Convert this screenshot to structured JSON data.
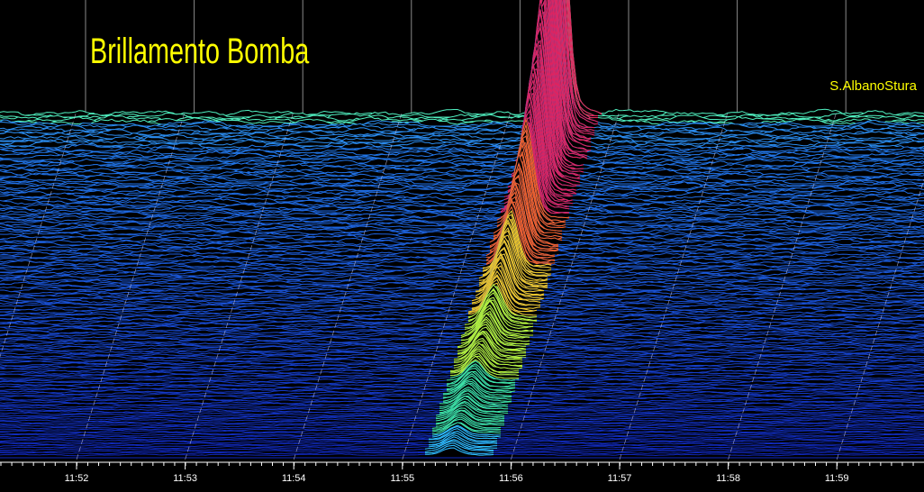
{
  "chart_data": {
    "type": "waterfall",
    "title": "Brillamento Bomba",
    "annotation": "S.AlbanoStura",
    "categories": [
      "11:52",
      "11:53",
      "11:54",
      "11:55",
      "11:56",
      "11:57",
      "11:58",
      "11:59"
    ]
  }
}
